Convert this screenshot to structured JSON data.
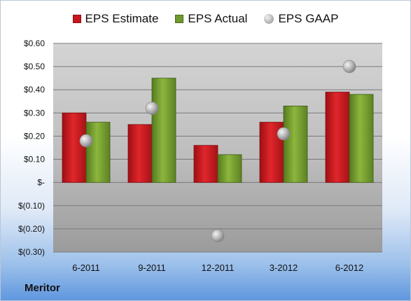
{
  "company": "Meritor",
  "chart_data": {
    "type": "bar",
    "categories": [
      "6-2011",
      "9-2011",
      "12-2011",
      "3-2012",
      "6-2012"
    ],
    "series": [
      {
        "name": "EPS Estimate",
        "kind": "bar",
        "color": "#c8161d",
        "values": [
          0.3,
          0.25,
          0.16,
          0.26,
          0.39
        ]
      },
      {
        "name": "EPS Actual",
        "kind": "bar",
        "color": "#6f9a2c",
        "values": [
          0.26,
          0.45,
          0.12,
          0.33,
          0.38
        ]
      },
      {
        "name": "EPS GAAP",
        "kind": "scatter",
        "color": "#a8a8a8",
        "values": [
          0.18,
          0.32,
          -0.23,
          0.21,
          0.5
        ]
      }
    ],
    "ylim": [
      -0.3,
      0.6
    ],
    "yticks": [
      {
        "value": 0.6,
        "label": "$0.60"
      },
      {
        "value": 0.5,
        "label": "$0.50"
      },
      {
        "value": 0.4,
        "label": "$0.40"
      },
      {
        "value": 0.3,
        "label": "$0.30"
      },
      {
        "value": 0.2,
        "label": "$0.20"
      },
      {
        "value": 0.1,
        "label": "$0.10"
      },
      {
        "value": 0.0,
        "label": "$-"
      },
      {
        "value": -0.1,
        "label": "$(0.10)"
      },
      {
        "value": -0.2,
        "label": "$(0.20)"
      },
      {
        "value": -0.3,
        "label": "$(0.30)"
      }
    ],
    "grid": true,
    "legend": "top"
  }
}
